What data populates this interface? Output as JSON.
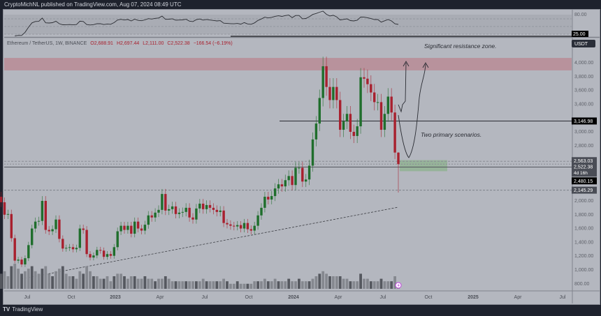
{
  "header": "CryptoMichNL published on TradingView.com, Aug 07, 2024 08:49 UTC",
  "legend": {
    "symbol": "Ethereum / TetherUS, 1W, BINANCE",
    "o": "O2,688.91",
    "h": "H2,697.44",
    "l": "L2,111.00",
    "c": "C2,522.38",
    "chg": "−166.54 (−6.19%)"
  },
  "currency_button": "USDT",
  "rsi_labels": {
    "top": "80.00",
    "level": "25.00"
  },
  "price_tags": {
    "resistance": "3,146.98",
    "upper": "2,563.03",
    "last": "2,522.38",
    "countdown": "4d 16h",
    "support": "2,480.15",
    "low": "2,145.29"
  },
  "annotations": {
    "resistance": "Significant resistance zone.",
    "scenarios": "Two primary scenarios."
  },
  "footer": "TradingView",
  "colors": {
    "up": "#1f6e2c",
    "down": "#a8202e",
    "zone_red": "#b98c95",
    "zone_green": "#8fb190"
  },
  "chart_data": {
    "type": "candlestick",
    "title": "Ethereum / TetherUS, 1W, BINANCE",
    "ylim": [
      700,
      4300
    ],
    "y_ticks": [
      "4,000.00",
      "3,800.00",
      "3,600.00",
      "3,400.00",
      "3,000.00",
      "2,800.00",
      "2,000.00",
      "1,800.00",
      "1,600.00",
      "1,400.00",
      "1,200.00",
      "1,000.00",
      "800.00"
    ],
    "y_tick_values": [
      4000,
      3800,
      3600,
      3400,
      3000,
      2800,
      2000,
      1800,
      1600,
      1400,
      1200,
      1000,
      800
    ],
    "x_ticks": [
      "Jul",
      "Oct",
      "2023",
      "Apr",
      "Jul",
      "Oct",
      "2024",
      "Apr",
      "Jul",
      "Oct",
      "2025",
      "Apr",
      "Jul"
    ],
    "first_open": 2050,
    "closes": [
      1970,
      1790,
      1800,
      1450,
      1125,
      1140,
      1070,
      1160,
      1350,
      1590,
      1690,
      1700,
      1990,
      1570,
      1550,
      1580,
      1720,
      1440,
      1300,
      1310,
      1320,
      1290,
      1310,
      1590,
      1570,
      1220,
      1170,
      1200,
      1280,
      1270,
      1180,
      1220,
      1195,
      1320,
      1550,
      1630,
      1570,
      1630,
      1515,
      1690,
      1590,
      1560,
      1645,
      1780,
      1750,
      1820,
      1860,
      2090,
      1850,
      1870,
      1910,
      1800,
      1820,
      1830,
      1890,
      1750,
      1720,
      1880,
      1950,
      1870,
      1930,
      1890,
      1860,
      1830,
      1850,
      1670,
      1650,
      1630,
      1620,
      1640,
      1590,
      1670,
      1580,
      1560,
      1630,
      1780,
      1890,
      2050,
      2010,
      2060,
      2170,
      2230,
      2200,
      2290,
      2350,
      2220,
      2470,
      2470,
      2270,
      2300,
      2500,
      2880,
      3110,
      3480,
      3940,
      3640,
      3450,
      3640,
      3450,
      3020,
      3140,
      3250,
      2990,
      2930,
      3070,
      3780,
      3760,
      3680,
      3560,
      3420,
      3420,
      3020,
      3250,
      3500,
      3270,
      2690,
      2522.38
    ],
    "last_bar": {
      "open": 2688.91,
      "high": 2697.44,
      "low": 2111.0,
      "close": 2522.38
    },
    "volume": [
      6,
      7,
      5,
      9,
      10,
      8,
      6,
      7,
      8,
      9,
      7,
      6,
      8,
      9,
      6,
      5,
      7,
      8,
      9,
      6,
      5,
      5,
      4,
      7,
      6,
      9,
      7,
      5,
      5,
      4,
      4,
      5,
      3,
      5,
      6,
      6,
      5,
      4,
      5,
      5,
      4,
      4,
      5,
      4,
      4,
      3,
      4,
      4,
      5,
      4,
      3,
      3,
      3,
      3,
      3,
      3,
      3,
      3,
      3,
      4,
      3,
      3,
      3,
      3,
      3,
      4,
      3,
      2,
      2,
      3,
      2,
      2,
      2,
      2,
      3,
      3,
      3,
      4,
      3,
      3,
      4,
      3,
      3,
      3,
      4,
      3,
      3,
      4,
      3,
      3,
      3,
      4,
      5,
      6,
      7,
      6,
      5,
      5,
      5,
      5,
      4,
      4,
      3,
      3,
      3,
      6,
      4,
      4,
      3,
      3,
      3,
      4,
      3,
      3,
      3,
      5,
      2
    ],
    "horizontal_levels": [
      3146.98,
      2563.03,
      2522.38,
      2480.15,
      2145.29
    ],
    "resistance_zone": [
      3880,
      4060
    ],
    "support_zone": [
      2420,
      2580
    ]
  }
}
